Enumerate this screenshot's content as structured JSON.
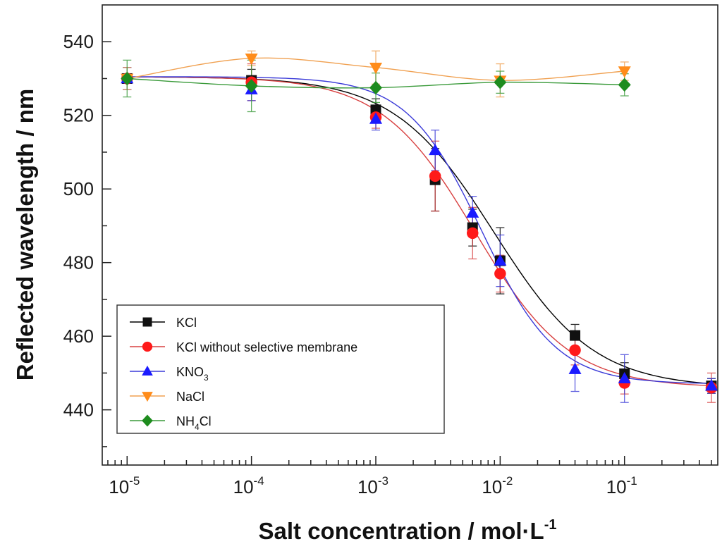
{
  "chart_data": {
    "type": "scatter",
    "xscale": "log",
    "xlim": [
      -5.2,
      -0.25
    ],
    "ylim": [
      425,
      550
    ],
    "xlabel": "Salt concentration / mol·L",
    "xlabel_sup": "-1",
    "ylabel": "Reflected wavelength / nm",
    "legend_position": "bottom-left",
    "grid": false,
    "yticks": [
      {
        "value": 440,
        "label": "440"
      },
      {
        "value": 460,
        "label": "460"
      },
      {
        "value": 480,
        "label": "480"
      },
      {
        "value": 500,
        "label": "500"
      },
      {
        "value": 520,
        "label": "520"
      },
      {
        "value": 540,
        "label": "540"
      }
    ],
    "xticks": [
      {
        "exp": -5,
        "base": "10",
        "sup": "-5"
      },
      {
        "exp": -4,
        "base": "10",
        "sup": "-4"
      },
      {
        "exp": -3,
        "base": "10",
        "sup": "-3"
      },
      {
        "exp": -2,
        "base": "10",
        "sup": "-2"
      },
      {
        "exp": -1,
        "base": "10",
        "sup": "-1"
      }
    ],
    "series": [
      {
        "name": "KCl",
        "label_main": "KCl",
        "label_sub": "",
        "label_tail": "",
        "marker": "square",
        "color": "#000000",
        "fill": "#111111",
        "line": "#000000",
        "x": [
          1e-05,
          0.0001,
          0.001,
          0.003,
          0.006,
          0.01,
          0.04,
          0.1,
          0.5
        ],
        "y": [
          530,
          529.5,
          521.5,
          502.5,
          489.5,
          480.5,
          460.2,
          449.8,
          446.5
        ],
        "err": [
          3,
          3,
          3,
          8.5,
          5,
          9,
          3,
          3,
          2
        ],
        "fit": {
          "top": 530.5,
          "bottom": 446,
          "logx0": -2.05,
          "p": 1.08
        }
      },
      {
        "name": "KCl without selective membrane",
        "label_main": "KCl without selective membrane",
        "label_sub": "",
        "label_tail": "",
        "marker": "circle",
        "color": "#ff2020",
        "fill": "#ff1a1a",
        "line": "#d84040",
        "x": [
          1e-05,
          0.0001,
          0.001,
          0.003,
          0.006,
          0.01,
          0.04,
          0.1,
          0.5
        ],
        "y": [
          530,
          529,
          519.5,
          503.5,
          488,
          477,
          456.2,
          447.3,
          446
        ],
        "err": [
          3,
          5,
          3,
          9.5,
          7,
          5,
          4,
          3,
          4
        ],
        "fit": {
          "top": 530.5,
          "bottom": 446,
          "logx0": -2.2,
          "p": 1.15
        }
      },
      {
        "name": "KNO3",
        "label_main": "KNO",
        "label_sub": "3",
        "label_tail": "",
        "marker": "triangle-up",
        "color": "#1a1aff",
        "fill": "#1a1aff",
        "line": "#3a3ad8",
        "x": [
          1e-05,
          0.0001,
          0.001,
          0.003,
          0.006,
          0.01,
          0.04,
          0.1,
          0.5
        ],
        "y": [
          530,
          527,
          519,
          510.5,
          493.5,
          480.5,
          451,
          448.5,
          446.5
        ],
        "err": [
          3,
          3,
          3,
          5.5,
          4.5,
          7,
          6,
          6.5,
          2
        ],
        "fit": {
          "top": 530.5,
          "bottom": 447,
          "logx0": -2.15,
          "p": 1.45
        }
      },
      {
        "name": "NaCl",
        "label_main": "NaCl",
        "label_sub": "",
        "label_tail": "",
        "marker": "triangle-down",
        "color": "#ff8c00",
        "fill": "#ff8c1a",
        "line": "#f0a050",
        "x": [
          1e-05,
          0.0001,
          0.001,
          0.01,
          0.1
        ],
        "y": [
          530,
          535.5,
          533,
          529.5,
          532
        ],
        "err": [
          3,
          2,
          4.5,
          4.5,
          2.5
        ]
      },
      {
        "name": "NH4Cl",
        "label_main": "NH",
        "label_sub": "4",
        "label_tail": "Cl",
        "marker": "diamond",
        "color": "#1a8a1a",
        "fill": "#1e8c1e",
        "line": "#3a9a3a",
        "x": [
          1e-05,
          0.0001,
          0.001,
          0.01,
          0.1
        ],
        "y": [
          530,
          528,
          527.5,
          529,
          528.3
        ],
        "err": [
          5,
          7,
          4,
          3,
          3
        ]
      }
    ]
  }
}
